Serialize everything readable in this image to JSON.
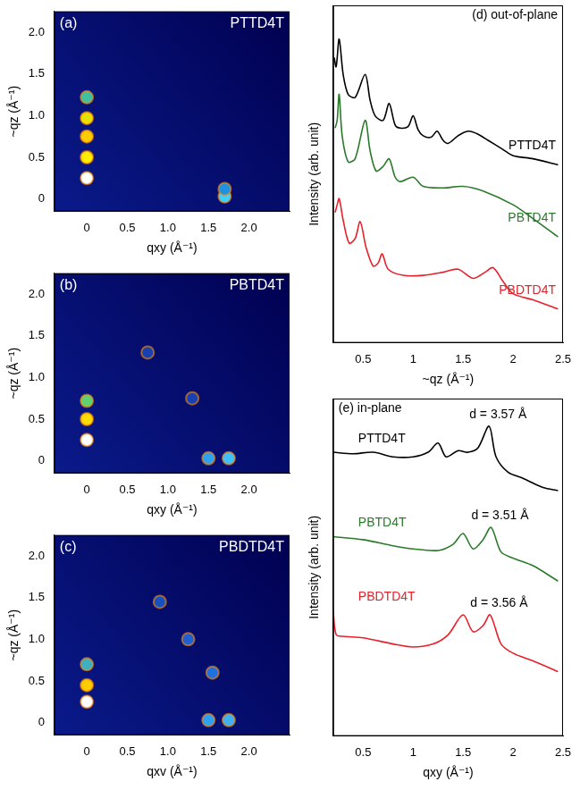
{
  "chart_data": [
    {
      "type": "scatter",
      "title": "(a)",
      "subtitle": "PTTD4T",
      "x_label": "qxy (Å⁻¹)",
      "y_label": "~qz (Å⁻¹)",
      "xlim": [
        -0.4,
        2.5
      ],
      "ylim": [
        -0.15,
        2.25
      ],
      "xticks": [
        0,
        0.5,
        {
          "value": 1,
          "label": "1.0"
        },
        1.5,
        {
          "value": 2,
          "label": "2.0"
        }
      ],
      "yticks": [
        0,
        0.5,
        {
          "value": 1,
          "label": "1.0"
        },
        1.5,
        {
          "value": 2,
          "label": "2.0"
        }
      ],
      "grid": false,
      "x": [
        0,
        0,
        0,
        0,
        0,
        1.7,
        1.7
      ],
      "y": [
        0.25,
        0.5,
        0.75,
        0.97,
        1.22,
        0.03,
        0.12
      ],
      "colors": [
        "#ffffff",
        "#ffee00",
        "#ffcc00",
        "#e8e000",
        "#40c0a0",
        "#40d0ff",
        "#2090e0"
      ]
    },
    {
      "type": "scatter",
      "title": "(b)",
      "subtitle": "PBTD4T",
      "x_label": "qxy (Å⁻¹)",
      "y_label": "~qz (Å⁻¹)",
      "xlim": [
        -0.4,
        2.5
      ],
      "ylim": [
        -0.15,
        2.25
      ],
      "xticks": [
        0,
        0.5,
        {
          "value": 1,
          "label": "1.0"
        },
        1.5,
        {
          "value": 2,
          "label": "2.0"
        }
      ],
      "yticks": [
        0,
        0.5,
        {
          "value": 1,
          "label": "1.0"
        },
        1.5,
        {
          "value": 2,
          "label": "2.0"
        }
      ],
      "grid": false,
      "x": [
        0,
        0,
        0,
        1.5,
        1.75,
        0.75,
        1.3
      ],
      "y": [
        0.25,
        0.5,
        0.72,
        0.03,
        0.03,
        1.3,
        0.75
      ],
      "colors": [
        "#ffffff",
        "#ffdd00",
        "#60d070",
        "#30a0f0",
        "#40c0ff",
        "#1840b0",
        "#1840b0"
      ]
    },
    {
      "type": "scatter",
      "title": "(c)",
      "subtitle": "PBDTD4T",
      "x_label": "qxv (Å⁻¹)",
      "y_label": "~qz (Å⁻¹)",
      "xlim": [
        -0.4,
        2.5
      ],
      "ylim": [
        -0.15,
        2.25
      ],
      "xticks": [
        0,
        0.5,
        {
          "value": 1,
          "label": "1.0"
        },
        1.5,
        {
          "value": 2,
          "label": "2.0"
        }
      ],
      "yticks": [
        0,
        0.5,
        {
          "value": 1,
          "label": "1.0"
        },
        1.5,
        {
          "value": 2,
          "label": "2.0"
        }
      ],
      "grid": false,
      "x": [
        0,
        0,
        0,
        1.5,
        1.75,
        1.25,
        0.9,
        1.55
      ],
      "y": [
        0.25,
        0.45,
        0.7,
        0.03,
        0.03,
        1.0,
        1.45,
        0.6
      ],
      "colors": [
        "#ffffff",
        "#ffcc00",
        "#40b0c0",
        "#30a0f0",
        "#40b0f0",
        "#2060d0",
        "#1850c0",
        "#2070e0"
      ]
    },
    {
      "type": "line",
      "title": "(d) out-of-plane",
      "x_label": "~qz (Å⁻¹)",
      "y_label": "Intensity (arb. unit)",
      "xlim": [
        0.2,
        2.5
      ],
      "ylim": [
        0,
        11
      ],
      "xticks": [
        0.5,
        1,
        1.5,
        2,
        2.5
      ],
      "grid": false,
      "tick_labels": "x",
      "legend": "right",
      "series": [
        {
          "name": "PTTD4T",
          "color": "#000000",
          "x": [
            0.21,
            0.23,
            0.26,
            0.3,
            0.35,
            0.42,
            0.52,
            0.57,
            0.62,
            0.7,
            0.76,
            0.82,
            0.87,
            0.95,
            1.0,
            1.05,
            1.1,
            1.18,
            1.24,
            1.3,
            1.35,
            1.45,
            1.55,
            1.65,
            1.75,
            1.9,
            2.0,
            2.2,
            2.45
          ],
          "values": [
            9.3,
            9.0,
            9.9,
            8.75,
            8.1,
            8.0,
            8.75,
            7.9,
            7.4,
            7.25,
            7.8,
            7.1,
            7.0,
            7.05,
            7.4,
            6.95,
            6.75,
            6.7,
            6.9,
            6.6,
            6.5,
            6.75,
            6.9,
            6.8,
            6.6,
            6.3,
            6.1,
            6.0,
            5.8
          ]
        },
        {
          "name": "PBTD4T",
          "color": "#2a7a2a",
          "x": [
            0.22,
            0.24,
            0.26,
            0.29,
            0.35,
            0.42,
            0.52,
            0.57,
            0.63,
            0.7,
            0.76,
            0.82,
            0.87,
            1.0,
            1.1,
            1.3,
            1.5,
            1.7,
            2.0,
            2.2,
            2.45
          ],
          "values": [
            7.0,
            7.25,
            8.1,
            6.75,
            5.9,
            6.0,
            7.25,
            6.25,
            5.6,
            5.75,
            6.0,
            5.4,
            5.25,
            5.4,
            5.1,
            5.05,
            5.1,
            4.95,
            4.5,
            4.05,
            3.45
          ]
        },
        {
          "name": "PBDTD4T",
          "color": "#e8202a",
          "x": [
            0.22,
            0.24,
            0.26,
            0.3,
            0.36,
            0.42,
            0.47,
            0.53,
            0.6,
            0.65,
            0.69,
            0.75,
            0.9,
            1.1,
            1.3,
            1.45,
            1.6,
            1.72,
            1.8,
            1.9,
            2.0,
            2.2,
            2.45
          ],
          "values": [
            4.25,
            4.5,
            4.7,
            4.0,
            3.25,
            3.4,
            3.95,
            3.1,
            2.5,
            2.6,
            2.9,
            2.4,
            2.2,
            2.2,
            2.3,
            2.4,
            2.1,
            2.3,
            2.45,
            2.0,
            1.6,
            1.4,
            1.1
          ]
        }
      ]
    },
    {
      "type": "line",
      "title": "(e) in-plane",
      "x_label": "qxy (Å⁻¹)",
      "y_label": "Intensity (arb. unit)",
      "xlim": [
        0.2,
        2.5
      ],
      "ylim": [
        0,
        11
      ],
      "xticks": [
        0.5,
        1,
        1.5,
        2,
        2.5
      ],
      "grid": false,
      "tick_labels": "x",
      "legend": "left",
      "annotations": [
        {
          "text": "d = 3.57 Å",
          "x": 1.76
        },
        {
          "text": "d = 3.51 Å",
          "x": 1.78
        },
        {
          "text": "d = 3.56 Å",
          "x": 1.77
        }
      ],
      "series": [
        {
          "name": "PTTD4T",
          "color": "#000000",
          "x": [
            0.2,
            0.4,
            0.6,
            0.8,
            1.0,
            1.15,
            1.25,
            1.33,
            1.45,
            1.55,
            1.65,
            1.76,
            1.83,
            1.95,
            2.1,
            2.3,
            2.45
          ],
          "values": [
            9.25,
            9.2,
            9.25,
            9.1,
            9.1,
            9.25,
            9.55,
            9.1,
            9.3,
            9.25,
            9.4,
            10.1,
            9.1,
            8.6,
            8.4,
            8.1,
            8.0
          ]
        },
        {
          "name": "PBTD4T",
          "color": "#2a7a2a",
          "x": [
            0.2,
            0.5,
            0.8,
            1.0,
            1.25,
            1.4,
            1.5,
            1.6,
            1.7,
            1.78,
            1.88,
            2.0,
            2.2,
            2.45
          ],
          "values": [
            6.5,
            6.4,
            6.2,
            6.1,
            6.05,
            6.25,
            6.6,
            6.1,
            6.4,
            6.8,
            6.0,
            5.8,
            5.55,
            5.05
          ]
        },
        {
          "name": "PBDTD4T",
          "color": "#e8202a",
          "x": [
            0.2,
            0.23,
            0.3,
            0.5,
            0.8,
            1.0,
            1.2,
            1.35,
            1.5,
            1.6,
            1.7,
            1.77,
            1.88,
            2.0,
            2.2,
            2.45
          ],
          "values": [
            4.1,
            3.3,
            3.25,
            3.2,
            3.0,
            2.9,
            3.0,
            3.3,
            3.95,
            3.4,
            3.6,
            3.95,
            3.0,
            2.7,
            2.45,
            2.1
          ]
        }
      ]
    }
  ]
}
